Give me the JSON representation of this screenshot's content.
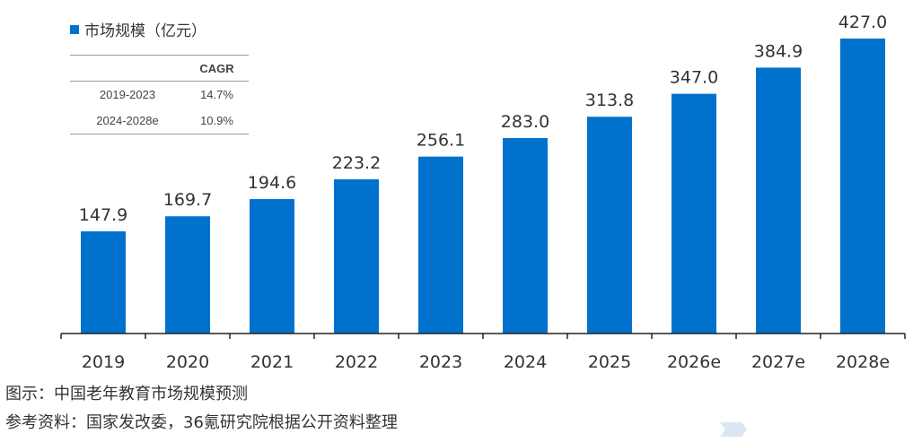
{
  "chart_data": {
    "type": "bar",
    "legend": "市场规模（亿元）",
    "categories": [
      "2019",
      "2020",
      "2021",
      "2022",
      "2023",
      "2024",
      "2025",
      "2026e",
      "2027e",
      "2028e"
    ],
    "series": [
      {
        "name": "市场规模（亿元）",
        "values": [
          147.9,
          169.7,
          194.6,
          223.2,
          256.1,
          283.0,
          313.8,
          347.0,
          384.9,
          427.0
        ],
        "labels": [
          "147.9",
          "169.7",
          "194.6",
          "223.2",
          "256.1",
          "283.0",
          "313.8",
          "347.0",
          "384.9",
          "427.0"
        ]
      }
    ],
    "ylim": [
      0,
      427.0
    ],
    "grid": false,
    "legend_position": "top-left",
    "colors": {
      "bar": "#0072CE",
      "axis": "#222222",
      "text": "#333333"
    }
  },
  "cagr_table": {
    "header": "CAGR",
    "rows": [
      {
        "period": "2019-2023",
        "value": "14.7%"
      },
      {
        "period": "2024-2028e",
        "value": "10.9%"
      }
    ]
  },
  "captions": {
    "title": "图示：中国老年教育市场规模预测",
    "source": "参考资料：国家发改委，36氪研究院根据公开资料整理"
  }
}
